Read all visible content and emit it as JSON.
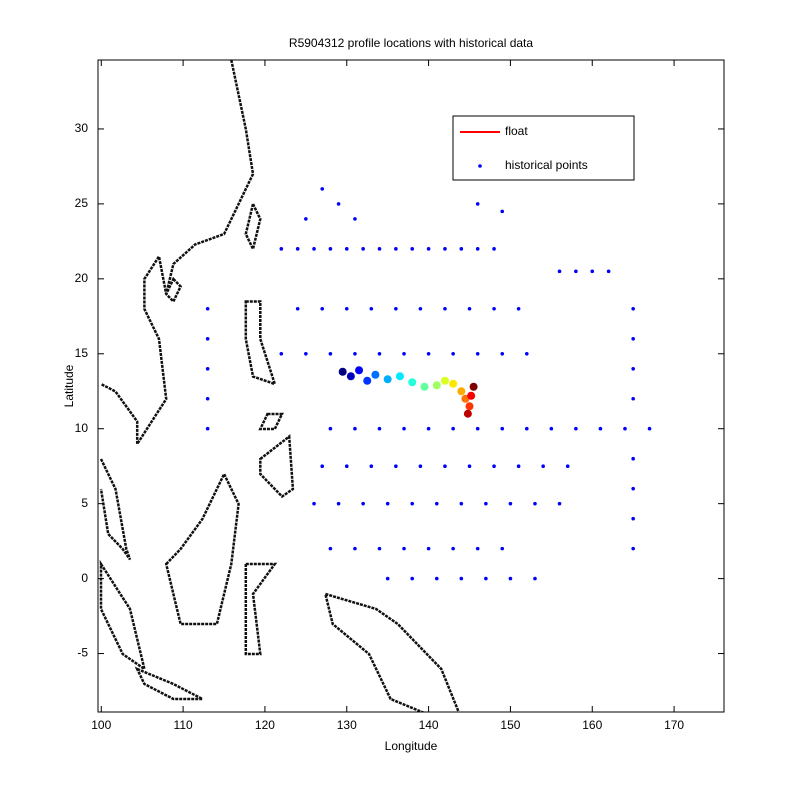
{
  "chart_data": {
    "type": "scatter",
    "title": "R5904312 profile locations with historical data",
    "xlabel": "Longitude",
    "ylabel": "Latitude",
    "xlim": [
      99.6,
      176.1
    ],
    "ylim": [
      -8.9,
      34.6
    ],
    "xticks": [
      100,
      110,
      120,
      130,
      140,
      150,
      160,
      170
    ],
    "yticks": [
      -5,
      0,
      5,
      10,
      15,
      20,
      25,
      30
    ],
    "legend": "northeast",
    "series": [
      {
        "name": "float",
        "color": "#ff0000",
        "colormap": "jet",
        "x": [
          129.5,
          130.5,
          131.5,
          132.5,
          133.5,
          135,
          136.5,
          138,
          139.5,
          141,
          142,
          143,
          144,
          144.5,
          145,
          145.2,
          144.8,
          145.5
        ],
        "y": [
          13.8,
          13.5,
          13.9,
          13.2,
          13.6,
          13.3,
          13.5,
          13.1,
          12.8,
          12.9,
          13.2,
          13,
          12.5,
          12,
          11.5,
          12.2,
          11,
          12.8
        ]
      },
      {
        "name": "historical points",
        "color": "#0000ff",
        "x": [
          122,
          124,
          126,
          128,
          130,
          132,
          134,
          136,
          138,
          140,
          142,
          144,
          146,
          148,
          156,
          158,
          160,
          162,
          124,
          127,
          130,
          133,
          136,
          139,
          142,
          145,
          148,
          151,
          122,
          125,
          128,
          131,
          134,
          137,
          140,
          143,
          146,
          149,
          152,
          128,
          131,
          134,
          137,
          140,
          143,
          146,
          149,
          152,
          155,
          158,
          161,
          164,
          167,
          127,
          130,
          133,
          136,
          139,
          142,
          145,
          148,
          151,
          154,
          157,
          126,
          129,
          132,
          135,
          138,
          141,
          144,
          147,
          150,
          153,
          156,
          128,
          131,
          134,
          137,
          140,
          143,
          146,
          149,
          135,
          138,
          141,
          144,
          147,
          150,
          153,
          165,
          165,
          165,
          165,
          165,
          165,
          165,
          165,
          113,
          113,
          113,
          113,
          113,
          125,
          127,
          129,
          131,
          146,
          149
        ],
        "y": [
          22,
          22,
          22,
          22,
          22,
          22,
          22,
          22,
          22,
          22,
          22,
          22,
          22,
          22,
          20.5,
          20.5,
          20.5,
          20.5,
          18,
          18,
          18,
          18,
          18,
          18,
          18,
          18,
          18,
          18,
          15,
          15,
          15,
          15,
          15,
          15,
          15,
          15,
          15,
          15,
          15,
          10,
          10,
          10,
          10,
          10,
          10,
          10,
          10,
          10,
          10,
          10,
          10,
          10,
          10,
          7.5,
          7.5,
          7.5,
          7.5,
          7.5,
          7.5,
          7.5,
          7.5,
          7.5,
          7.5,
          7.5,
          5,
          5,
          5,
          5,
          5,
          5,
          5,
          5,
          5,
          5,
          5,
          2,
          2,
          2,
          2,
          2,
          2,
          2,
          2,
          0,
          0,
          0,
          0,
          0,
          0,
          0,
          2,
          4,
          6,
          8,
          12,
          14,
          16,
          18,
          10,
          12,
          14,
          16,
          18,
          24,
          26,
          25,
          24,
          25,
          24.5
        ]
      }
    ]
  }
}
